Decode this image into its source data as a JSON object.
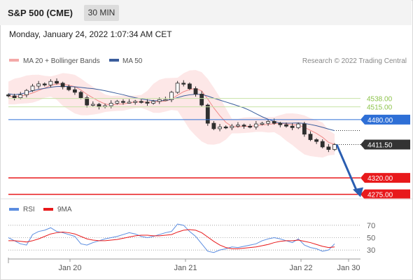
{
  "header": {
    "title": "S&P 500 (CME)",
    "timeframe": "30 MIN"
  },
  "datetime": "Monday, January 24, 2022 1:07:34 AM CET",
  "legend": {
    "bb": "MA 20 + Bollinger Bands",
    "ma50": "MA 50",
    "credit": "Research © 2022 Trading Central"
  },
  "rsi_legend": {
    "rsi": "RSI",
    "ma": "9MA"
  },
  "colors": {
    "up": "#2f2f2f",
    "green": "#8cc34a",
    "blue": "#2e6fd6",
    "red": "#e8191b",
    "dark": "#333333",
    "ma50": "#3a5d9c",
    "bb": "#f4a9a8"
  },
  "chart_data": [
    {
      "type": "candlestick",
      "ylim": [
        4255,
        4620
      ],
      "x_ticks": [
        "Jan 20",
        "Jan 21",
        "Jan 22",
        "Jan 30"
      ],
      "levels": [
        {
          "value": 4538,
          "label": "4538.00",
          "style": "green"
        },
        {
          "value": 4515,
          "label": "4515.00",
          "style": "green"
        },
        {
          "value": 4480,
          "label": "4480.00",
          "style": "blue"
        },
        {
          "value": 4411.5,
          "label": "4411.50",
          "style": "dark"
        },
        {
          "value": 4320,
          "label": "4320.00",
          "style": "red"
        },
        {
          "value": 4275,
          "label": "4275.00",
          "style": "red"
        }
      ],
      "price_path": [
        4545,
        4540,
        4548,
        4560,
        4572,
        4578,
        4575,
        4585,
        4580,
        4570,
        4562,
        4555,
        4540,
        4520,
        4522,
        4515,
        4518,
        4525,
        4530,
        4528,
        4528,
        4530,
        4528,
        4525,
        4530,
        4535,
        4535,
        4555,
        4580,
        4578,
        4565,
        4550,
        4520,
        4470,
        4455,
        4460,
        4458,
        4462,
        4465,
        4462,
        4460,
        4468,
        4470,
        4475,
        4470,
        4466,
        4462,
        4458,
        4468,
        4440,
        4425,
        4420,
        4405,
        4398,
        4411.5
      ],
      "forecast_target": 4275
    },
    {
      "type": "line",
      "title": "RSI",
      "ylim": [
        20,
        80
      ],
      "y_ticks": [
        70,
        50,
        30
      ],
      "series": [
        {
          "name": "RSI",
          "values": [
            50,
            45,
            40,
            38,
            55,
            60,
            62,
            66,
            60,
            58,
            55,
            52,
            40,
            38,
            42,
            45,
            48,
            50,
            52,
            55,
            58,
            56,
            52,
            50,
            52,
            55,
            58,
            60,
            72,
            70,
            60,
            52,
            40,
            28,
            26,
            30,
            32,
            35,
            34,
            36,
            38,
            40,
            45,
            48,
            50,
            48,
            45,
            42,
            48,
            38,
            34,
            32,
            28,
            30,
            40
          ]
        },
        {
          "name": "9MA",
          "values": [
            45,
            45,
            44,
            43,
            45,
            48,
            52,
            56,
            58,
            59,
            58,
            56,
            52,
            48,
            46,
            45,
            45,
            46,
            47,
            49,
            51,
            53,
            54,
            54,
            53,
            53,
            54,
            55,
            59,
            62,
            63,
            62,
            58,
            51,
            44,
            38,
            34,
            32,
            32,
            33,
            34,
            35,
            37,
            39,
            42,
            44,
            45,
            45,
            46,
            44,
            42,
            39,
            36,
            34,
            35
          ]
        }
      ]
    }
  ]
}
